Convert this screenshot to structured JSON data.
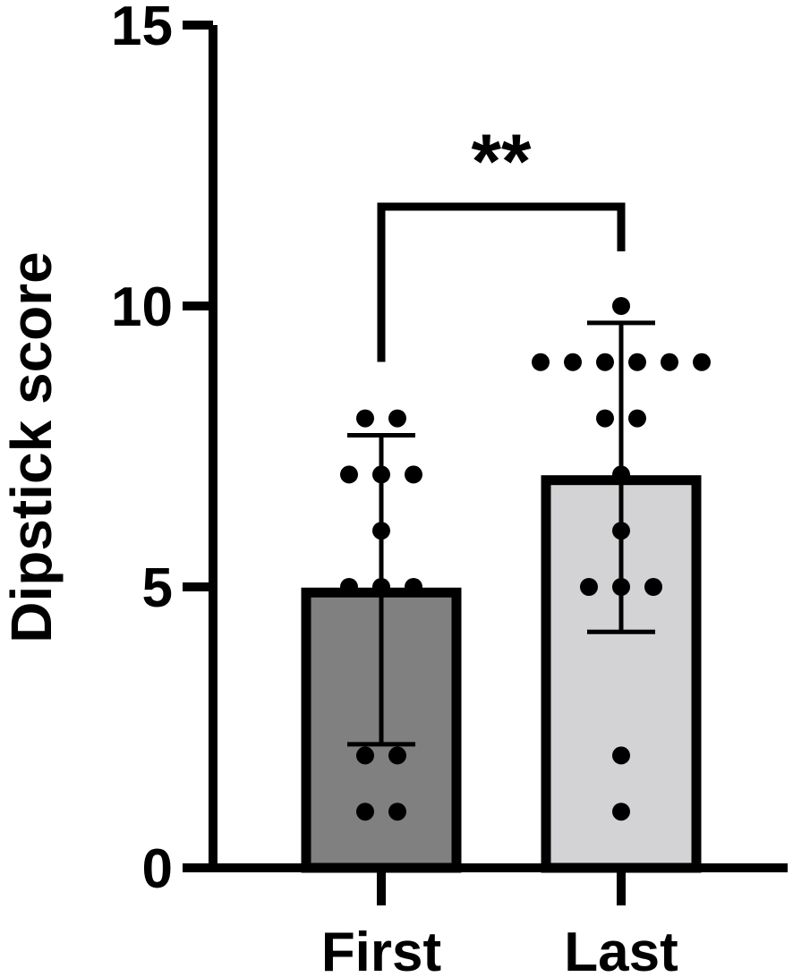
{
  "chart_data": {
    "type": "bar",
    "title": "",
    "xlabel": "",
    "ylabel": "Dipstick score",
    "ylim": [
      0,
      15
    ],
    "yticks": [
      0,
      5,
      10,
      15
    ],
    "categories": [
      "First",
      "Last"
    ],
    "values": [
      4.9,
      6.9
    ],
    "error_low": [
      2.2,
      4.2
    ],
    "error_high": [
      7.7,
      9.7
    ],
    "bar_colors": [
      "#808080",
      "#d3d3d5"
    ],
    "points": [
      [
        8,
        8,
        7,
        7,
        7,
        6,
        5,
        5,
        5,
        2,
        2,
        1,
        1
      ],
      [
        10,
        9,
        9,
        9,
        9,
        9,
        9,
        8,
        8,
        7,
        6,
        5,
        5,
        5,
        2,
        1
      ]
    ],
    "significance": {
      "from": "First",
      "to": "Last",
      "label": "**"
    },
    "grid": false,
    "legend": "none"
  }
}
